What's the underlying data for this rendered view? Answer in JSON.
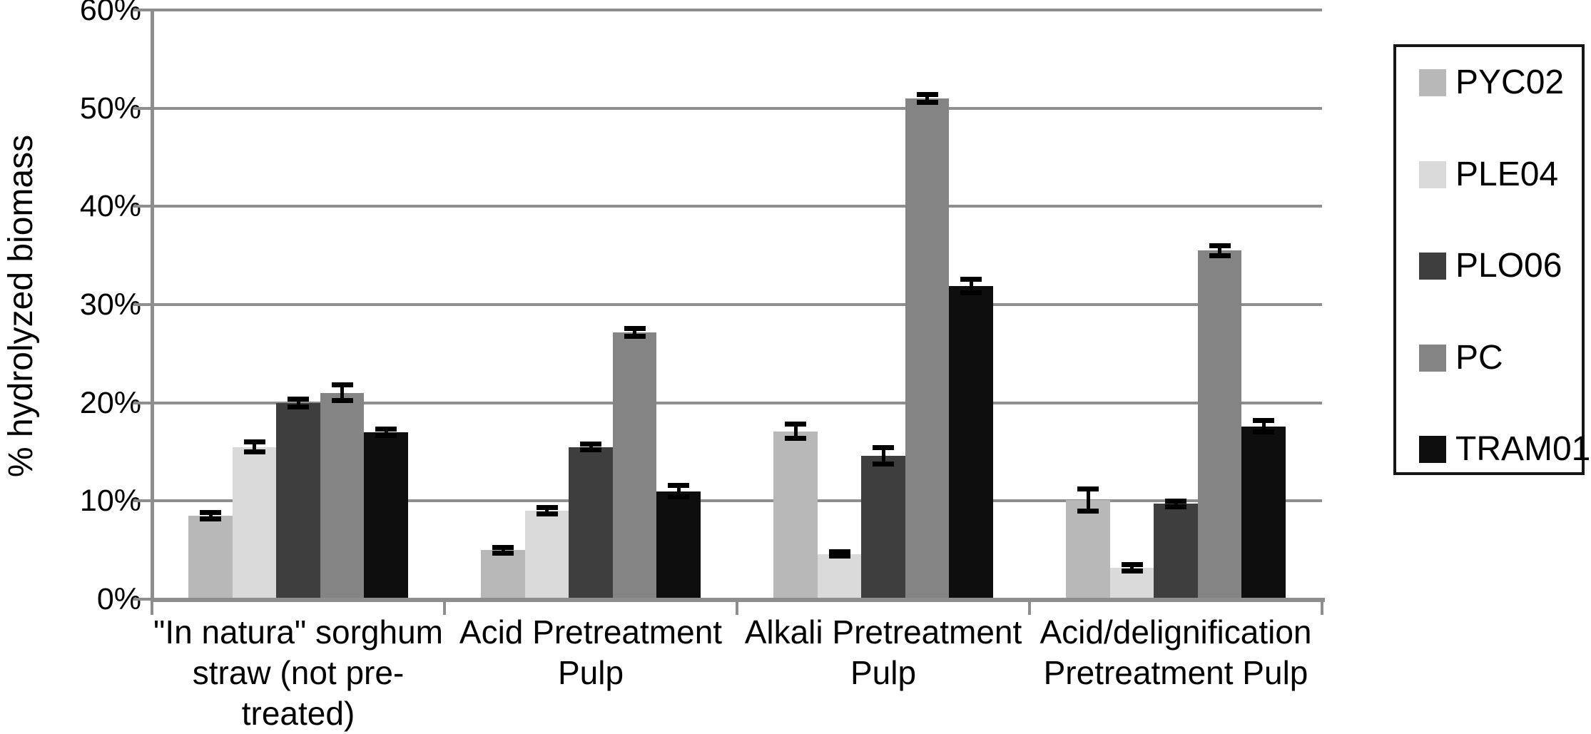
{
  "chart_data": {
    "type": "bar",
    "title": "",
    "ylabel": "% hydrolyzed biomass",
    "xlabel": "",
    "ylim": [
      0,
      60
    ],
    "ytick_step": 10,
    "yticks": [
      "0%",
      "10%",
      "20%",
      "30%",
      "40%",
      "50%",
      "60%"
    ],
    "grid": true,
    "legend_position": "right",
    "error_bars": true,
    "categories": [
      {
        "label": "\"In natura\" sorghum straw (not pre-treated)",
        "lines": [
          "\"In natura\" sorghum",
          "straw (not pre-",
          "treated)"
        ]
      },
      {
        "label": "Acid Pretreatment Pulp",
        "lines": [
          "Acid Pretreatment",
          "Pulp"
        ]
      },
      {
        "label": "Alkali Pretreatment Pulp",
        "lines": [
          "Alkali Pretreatment",
          "Pulp"
        ]
      },
      {
        "label": "Acid/delignification Pretreatment Pulp",
        "lines": [
          "Acid/delignification",
          "Pretreatment Pulp"
        ]
      }
    ],
    "series": [
      {
        "name": "PYC02",
        "color": "#b8b8b8",
        "values": [
          8.5,
          5.0,
          17.1,
          10.1
        ],
        "errors": [
          0.3,
          0.3,
          0.7,
          1.1
        ]
      },
      {
        "name": "PLE04",
        "color": "#dadada",
        "values": [
          15.5,
          9.0,
          4.6,
          3.2
        ],
        "errors": [
          0.5,
          0.3,
          0.2,
          0.3
        ]
      },
      {
        "name": "PLO06",
        "color": "#3e3e3e",
        "values": [
          20.0,
          15.5,
          14.6,
          9.7
        ],
        "errors": [
          0.4,
          0.3,
          0.8,
          0.3
        ]
      },
      {
        "name": "PC",
        "color": "#848484",
        "values": [
          21.0,
          27.2,
          51.0,
          35.5
        ],
        "errors": [
          0.8,
          0.4,
          0.4,
          0.5
        ]
      },
      {
        "name": "TRAM01",
        "color": "#0e0e0e",
        "values": [
          17.0,
          11.0,
          31.9,
          17.6
        ],
        "errors": [
          0.3,
          0.6,
          0.7,
          0.6
        ]
      }
    ],
    "colors": {
      "grid": "#8e8e8e",
      "axis": "#8e8e8e",
      "error_bar": "#000000",
      "text": "#000000",
      "background": "#ffffff",
      "legend_border": "#161616"
    }
  }
}
